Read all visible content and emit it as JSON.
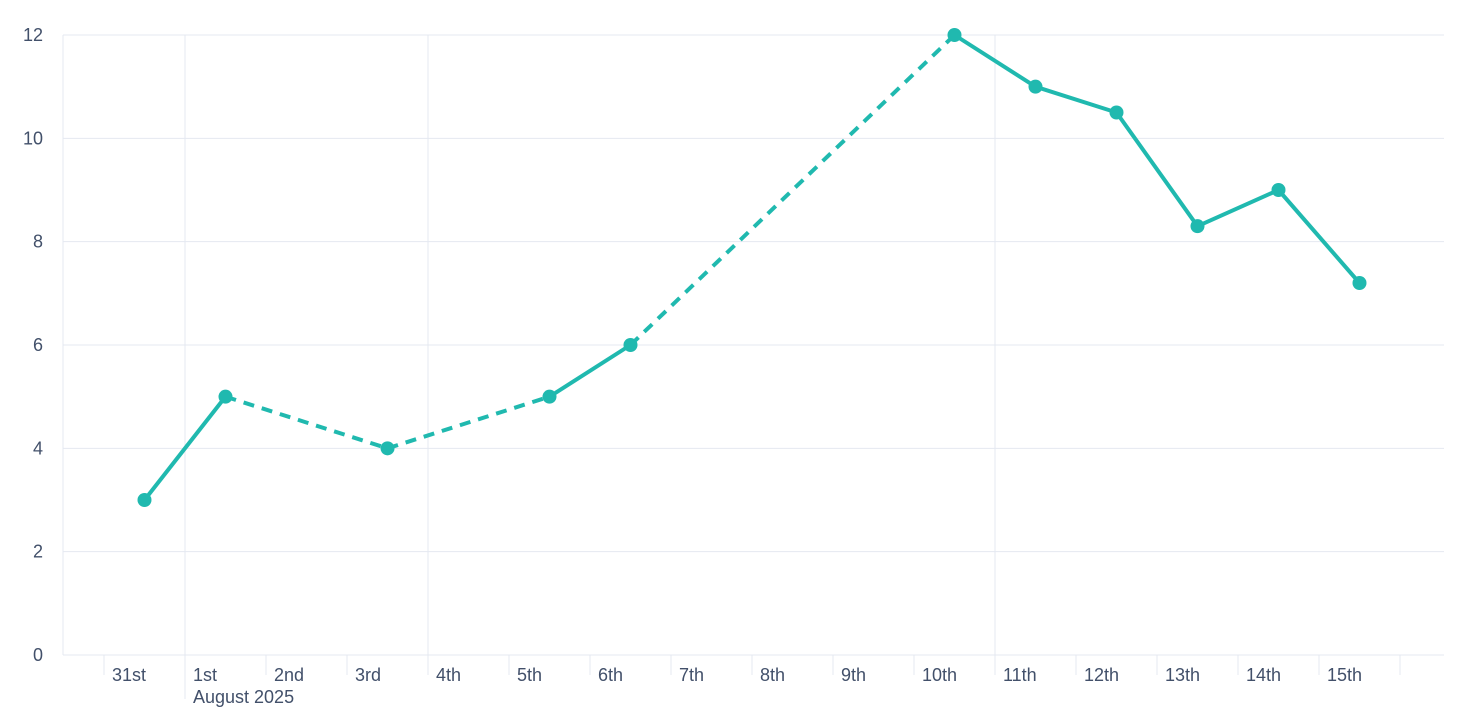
{
  "chart_data": {
    "type": "line",
    "title": "",
    "x_axis": {
      "tick_labels": [
        "31st",
        "1st",
        "2nd",
        "3rd",
        "4th",
        "5th",
        "6th",
        "7th",
        "8th",
        "9th",
        "10th",
        "11th",
        "12th",
        "13th",
        "14th",
        "15th"
      ],
      "month_label": "August 2025",
      "month_label_at": "1st",
      "week_gridlines_at": [
        "1st",
        "4th",
        "11th"
      ],
      "has_trailing_unlabeled_tick": true
    },
    "y_axis": {
      "tick_labels": [
        "0",
        "2",
        "4",
        "6",
        "8",
        "10",
        "12"
      ],
      "tick_values": [
        0,
        2,
        4,
        6,
        8,
        10,
        12
      ],
      "range": [
        0,
        12
      ],
      "gridlines": true
    },
    "series": [
      {
        "name": "daily-values",
        "color": "#20b9af",
        "marker": "circle",
        "points": [
          {
            "x": "31st",
            "y": 3
          },
          {
            "x": "1st",
            "y": 5
          },
          {
            "x": "3rd",
            "y": 4
          },
          {
            "x": "5th",
            "y": 5
          },
          {
            "x": "6th",
            "y": 6
          },
          {
            "x": "10th",
            "y": 12
          },
          {
            "x": "11th",
            "y": 11
          },
          {
            "x": "12th",
            "y": 10.5
          },
          {
            "x": "13th",
            "y": 8.3
          },
          {
            "x": "14th",
            "y": 9
          },
          {
            "x": "15th",
            "y": 7.2
          }
        ],
        "segment_styles": [
          "solid",
          "dashed",
          "dashed",
          "solid",
          "dashed",
          "solid",
          "solid",
          "solid",
          "solid",
          "solid"
        ]
      }
    ],
    "theme": {
      "background": "#ffffff",
      "grid_color": "#e4e8f1",
      "axis_text_color": "#42506a"
    },
    "legend": null
  }
}
